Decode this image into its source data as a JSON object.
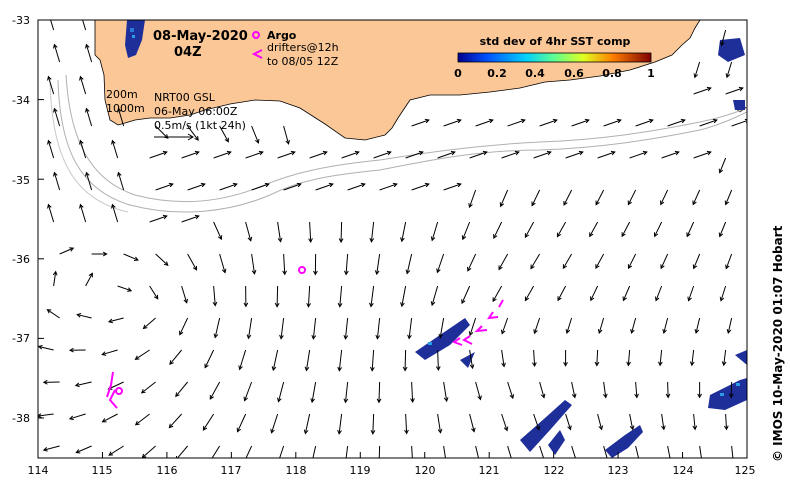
{
  "header": {
    "date": "08-May-2020",
    "time": "04Z"
  },
  "legend": {
    "argo_label": "Argo",
    "drifters_label": "drifters@12h",
    "drifters_to": "to 08/05 12Z",
    "colorbar_title": "std dev of 4hr SST comp",
    "colorbar_ticks": [
      "0",
      "0.2",
      "0.4",
      "0.6",
      "0.8",
      "1"
    ]
  },
  "info": {
    "contour_200": "200m",
    "contour_1000": "1000m",
    "product": "NRT00 GSL",
    "product_date": "06-May 06:00Z",
    "scale_label": "0.5m/s (1kt 24h)"
  },
  "credit": "© IMOS 10-May-2020 01:07 Hobart",
  "colors": {
    "land": "#fbc796",
    "argo": "#ff00ff",
    "drifter": "#ff00ff",
    "sst_patch": "#1e2f9a",
    "contour": "#b0b0b0"
  },
  "axes": {
    "x_ticks": [
      "114",
      "115",
      "116",
      "117",
      "118",
      "119",
      "120",
      "121",
      "122",
      "123",
      "124",
      "125"
    ],
    "y_ticks": [
      "-33",
      "-34",
      "-35",
      "-36",
      "-37",
      "-38"
    ]
  }
}
